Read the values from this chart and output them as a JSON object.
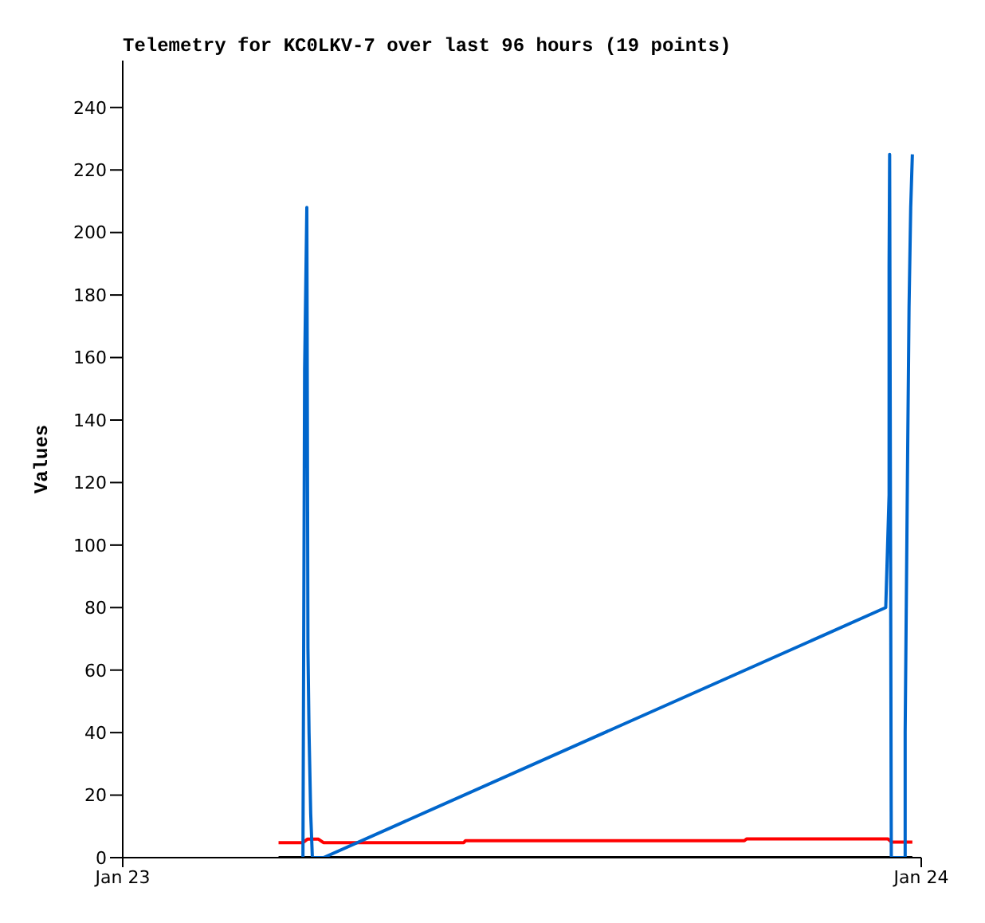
{
  "chart_data": {
    "type": "line",
    "title": "Telemetry for KC0LKV-7 over last 96 hours (19 points)",
    "ylabel": "Values",
    "xlim": [
      "--01-23T00:00",
      "--01-24T00:00"
    ],
    "xticks": [
      {
        "value": "--01-23",
        "label": "Jan 23"
      },
      {
        "value": "--01-24",
        "label": "Jan 24"
      }
    ],
    "ylim": [
      0,
      255
    ],
    "yticks": [
      0,
      20,
      40,
      60,
      80,
      100,
      120,
      140,
      160,
      180,
      200,
      220,
      240
    ],
    "marker": "none",
    "line_style": "solid",
    "series": [
      {
        "color": "#000000",
        "x": [
          "--01-23T04:41",
          "--01-23T23:44"
        ],
        "values": [
          0,
          0
        ]
      },
      {
        "color": "#ff0000",
        "x": [
          "--01-23T04:41",
          "--01-23T05:25",
          "--01-23T05:33",
          "--01-23T05:53",
          "--01-23T06:02",
          "--01-23T10:15",
          "--01-23T10:18",
          "--01-23T18:41",
          "--01-23T18:45",
          "--01-23T23:00",
          "--01-23T23:06",
          "--01-23T23:44"
        ],
        "values": [
          4.8,
          4.8,
          5.9,
          5.9,
          4.8,
          4.8,
          5.4,
          5.4,
          6,
          6,
          5,
          5
        ]
      },
      {
        "color": "#0066cc",
        "x": [
          "--01-23T05:25",
          "--01-23T05:26",
          "--01-23T05:28",
          "--01-23T05:32",
          "--01-23T05:34",
          "--01-23T05:36",
          "--01-23T05:39",
          "--01-23T05:42",
          "--01-23T06:02",
          "--01-23T22:56",
          "--01-23T23:02",
          "--01-23T23:02",
          "--01-23T23:03",
          "--01-23T23:06",
          "--01-23T23:31",
          "--01-23T23:31",
          "--01-23T23:35",
          "--01-23T23:38",
          "--01-23T23:41",
          "--01-23T23:44"
        ],
        "values": [
          0,
          52,
          156,
          208,
          67,
          40,
          14,
          0,
          0,
          80,
          116,
          189,
          225,
          0,
          0,
          40,
          120,
          176,
          208,
          225
        ]
      }
    ]
  }
}
